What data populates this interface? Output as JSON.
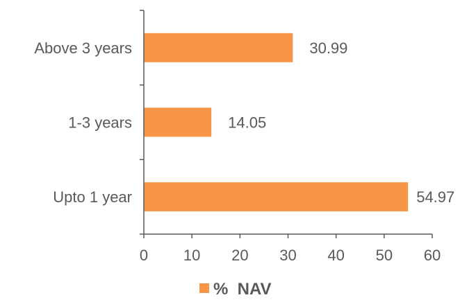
{
  "chart_data": {
    "type": "bar",
    "orientation": "horizontal",
    "categories": [
      "Above 3 years",
      "1-3 years",
      "Upto 1 year"
    ],
    "series": [
      {
        "name": "%  NAV",
        "values": [
          30.99,
          14.05,
          54.97
        ],
        "color": "#F79646"
      }
    ],
    "data_labels": [
      "30.99",
      "14.05",
      "54.97"
    ],
    "xlim": [
      0,
      60
    ],
    "x_ticks": [
      0,
      10,
      20,
      30,
      40,
      50,
      60
    ],
    "grid": false,
    "legend": "bottom",
    "axis_color": "#595959",
    "text_color": "#595959"
  }
}
